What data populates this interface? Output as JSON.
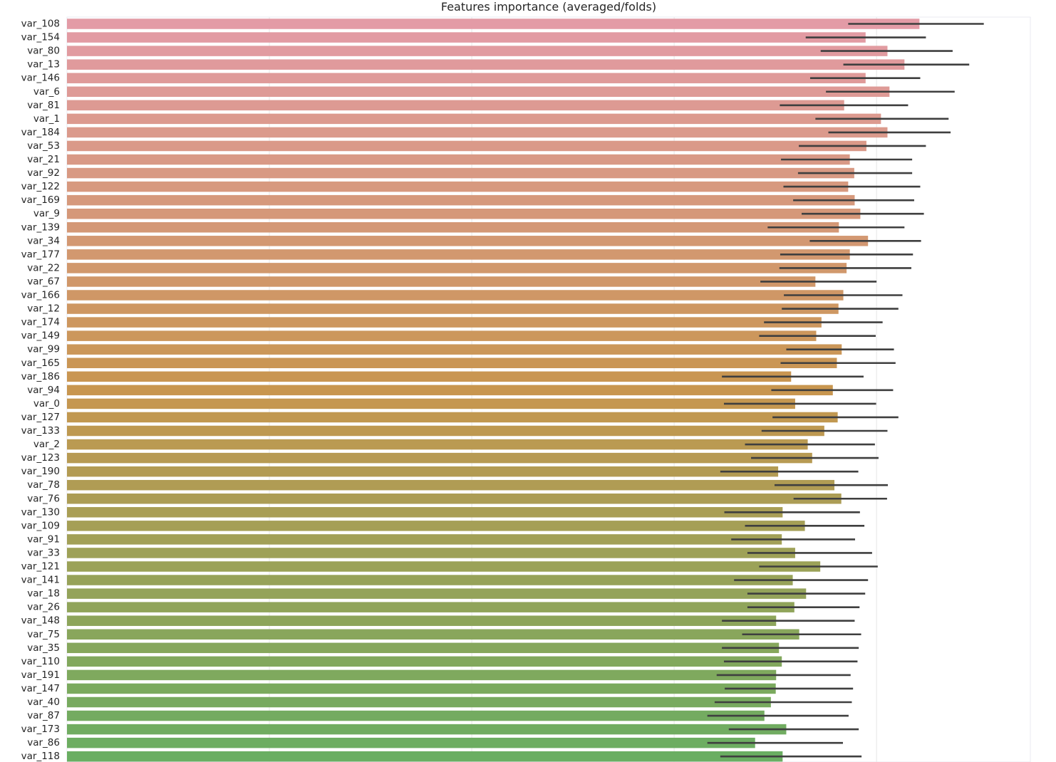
{
  "chart_data": {
    "type": "bar",
    "orientation": "horizontal",
    "title": "Features importance (averaged/folds)",
    "xlabel": "",
    "ylabel": "",
    "xlim": [
      0,
      2380
    ],
    "grid": true,
    "error_bars": true,
    "categories": [
      "var_108",
      "var_154",
      "var_80",
      "var_13",
      "var_146",
      "var_6",
      "var_81",
      "var_1",
      "var_184",
      "var_53",
      "var_21",
      "var_92",
      "var_122",
      "var_169",
      "var_9",
      "var_139",
      "var_34",
      "var_177",
      "var_22",
      "var_67",
      "var_166",
      "var_12",
      "var_174",
      "var_149",
      "var_99",
      "var_165",
      "var_186",
      "var_94",
      "var_0",
      "var_127",
      "var_133",
      "var_2",
      "var_123",
      "var_190",
      "var_78",
      "var_76",
      "var_130",
      "var_109",
      "var_91",
      "var_33",
      "var_121",
      "var_141",
      "var_18",
      "var_26",
      "var_148",
      "var_75",
      "var_35",
      "var_110",
      "var_191",
      "var_147",
      "var_40",
      "var_87",
      "var_173",
      "var_86",
      "var_118"
    ],
    "values": [
      2106,
      1973,
      2027,
      2069,
      1973,
      2032,
      1920,
      2011,
      2027,
      1975,
      1934,
      1945,
      1930,
      1946,
      1960,
      1907,
      1979,
      1934,
      1926,
      1849,
      1918,
      1906,
      1864,
      1851,
      1914,
      1902,
      1789,
      1892,
      1799,
      1904,
      1871,
      1830,
      1841,
      1757,
      1896,
      1913,
      1768,
      1823,
      1766,
      1799,
      1861,
      1793,
      1826,
      1797,
      1752,
      1809,
      1759,
      1766,
      1752,
      1751,
      1739,
      1723,
      1777,
      1700,
      1768
    ],
    "err_low": [
      1930,
      1825,
      1862,
      1918,
      1836,
      1875,
      1761,
      1849,
      1881,
      1808,
      1764,
      1806,
      1770,
      1794,
      1815,
      1731,
      1835,
      1762,
      1760,
      1713,
      1771,
      1766,
      1722,
      1710,
      1777,
      1763,
      1618,
      1740,
      1623,
      1743,
      1716,
      1675,
      1690,
      1614,
      1748,
      1795,
      1624,
      1675,
      1641,
      1681,
      1710,
      1648,
      1681,
      1681,
      1618,
      1668,
      1618,
      1623,
      1605,
      1625,
      1600,
      1582,
      1635,
      1582,
      1614
    ],
    "err_high": [
      2265,
      2122,
      2188,
      2229,
      2108,
      2193,
      2078,
      2178,
      2183,
      2122,
      2088,
      2088,
      2108,
      2093,
      2117,
      2069,
      2110,
      2090,
      2086,
      2000,
      2064,
      2054,
      2015,
      1998,
      2043,
      2047,
      1968,
      2041,
      1999,
      2054,
      2027,
      1996,
      2005,
      1955,
      2028,
      2026,
      1959,
      1970,
      1947,
      1989,
      2003,
      1979,
      1972,
      1958,
      1946,
      1962,
      1956,
      1953,
      1936,
      1942,
      1939,
      1931,
      1956,
      1917,
      1963
    ],
    "palette_start": "#e39ba6",
    "palette_mid": "#c8964f",
    "palette_end": "#6aae62",
    "error_color": "#3f3f3f"
  }
}
